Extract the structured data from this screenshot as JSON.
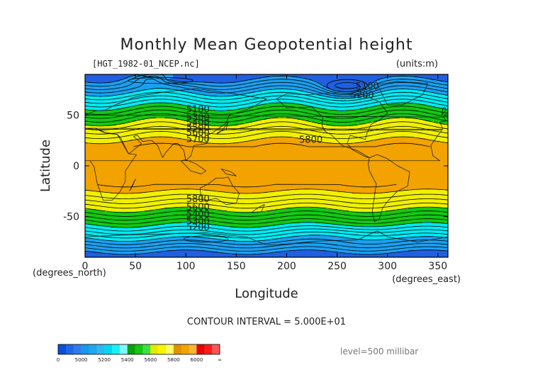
{
  "chart_data": {
    "type": "heatmap",
    "subtype": "filled-contour-map",
    "title": "Monthly Mean Geopotential height",
    "file_label": "[HGT_1982-01_NCEP.nc]",
    "units_label": "(units:m)",
    "xlabel": "Longitude",
    "ylabel": "Latitude",
    "x_units_label": "(degrees_east)",
    "y_units_label": "(degrees_north)",
    "xlim": [
      0,
      360
    ],
    "ylim": [
      -90,
      90
    ],
    "x_ticks": [
      0,
      50,
      100,
      150,
      200,
      250,
      300,
      350
    ],
    "y_ticks": [
      50,
      0,
      -50
    ],
    "contour_interval_text": "CONTOUR INTERVAL = 5.000E+01",
    "level_text": "level=500 millibar",
    "colorbar": {
      "labels": [
        "0",
        "5000",
        "5200",
        "5400",
        "5600",
        "5800",
        "6000",
        "∞"
      ],
      "bins": [
        {
          "from": 0,
          "to": 5000,
          "color": "#1f5fe0"
        },
        {
          "from": 5000,
          "to": 5200,
          "color": "#1aa0f0"
        },
        {
          "from": 5200,
          "to": 5400,
          "color": "#00eaf2"
        },
        {
          "from": 5400,
          "to": 5600,
          "color": "#12c812"
        },
        {
          "from": 5600,
          "to": 5800,
          "color": "#f0f000"
        },
        {
          "from": 5800,
          "to": 6000,
          "color": "#f2a300"
        },
        {
          "from": 6000,
          "to": 99999,
          "color": "#ff1a1a"
        }
      ]
    },
    "contour_labels": [
      {
        "lon": 280,
        "lat": 79,
        "value": "5100"
      },
      {
        "lon": 275,
        "lat": 70,
        "value": "5200"
      },
      {
        "lon": 112,
        "lat": 56,
        "value": "5100"
      },
      {
        "lon": 112,
        "lat": 48,
        "value": "5300"
      },
      {
        "lon": 112,
        "lat": 43,
        "value": "5400"
      },
      {
        "lon": 112,
        "lat": 38,
        "value": "5500"
      },
      {
        "lon": 112,
        "lat": 33,
        "value": "5600"
      },
      {
        "lon": 112,
        "lat": 27,
        "value": "5700"
      },
      {
        "lon": 224,
        "lat": 26,
        "value": "5800"
      },
      {
        "lon": 112,
        "lat": -32,
        "value": "5800"
      },
      {
        "lon": 112,
        "lat": -40,
        "value": "5600"
      },
      {
        "lon": 112,
        "lat": -47,
        "value": "5400"
      },
      {
        "lon": 112,
        "lat": -54,
        "value": "5300"
      },
      {
        "lon": 112,
        "lat": -60,
        "value": "5200"
      }
    ]
  }
}
